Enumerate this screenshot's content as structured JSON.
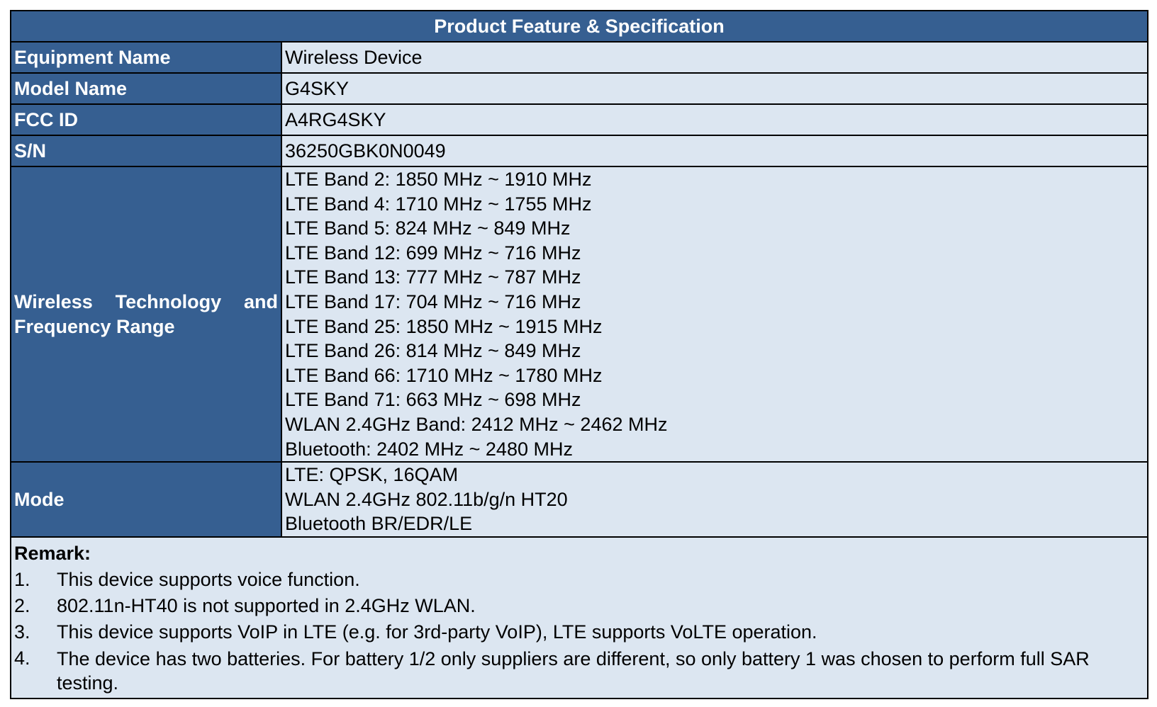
{
  "title": "Product Feature & Specification",
  "rows": [
    {
      "label": "Equipment Name",
      "value": "Wireless Device"
    },
    {
      "label": "Model Name",
      "value": "G4SKY"
    },
    {
      "label": "FCC ID",
      "value": "A4RG4SKY"
    },
    {
      "label": "S/N",
      "value": "36250GBK0N0049"
    }
  ],
  "frequency": {
    "label": "Wireless Technology and Frequency Range",
    "values": [
      "LTE Band 2: 1850 MHz ~ 1910 MHz",
      "LTE Band 4: 1710 MHz ~ 1755 MHz",
      "LTE Band 5: 824 MHz ~ 849 MHz",
      "LTE Band 12: 699 MHz ~ 716 MHz",
      "LTE Band 13: 777 MHz ~ 787 MHz",
      "LTE Band 17: 704 MHz ~ 716 MHz",
      "LTE Band 25: 1850 MHz ~ 1915 MHz",
      "LTE Band 26: 814 MHz ~ 849 MHz",
      "LTE Band 66: 1710 MHz ~ 1780 MHz",
      "LTE Band 71: 663 MHz ~ 698 MHz",
      "WLAN 2.4GHz Band: 2412 MHz ~ 2462 MHz",
      "Bluetooth: 2402 MHz ~ 2480 MHz"
    ]
  },
  "mode": {
    "label": "Mode",
    "values": [
      "LTE: QPSK, 16QAM",
      "WLAN 2.4GHz 802.11b/g/n HT20",
      "Bluetooth BR/EDR/LE"
    ]
  },
  "remark": {
    "title": "Remark:",
    "items": [
      {
        "num": "1.",
        "text": "This device supports voice function."
      },
      {
        "num": "2.",
        "text": "802.11n-HT40 is not supported in 2.4GHz WLAN."
      },
      {
        "num": "3.",
        "text": "This device supports VoIP in LTE (e.g. for 3rd-party VoIP), LTE supports VoLTE operation."
      },
      {
        "num": "4.",
        "text": "The device has two batteries. For battery 1/2 only suppliers are different, so only battery 1 was chosen to perform full SAR testing."
      }
    ]
  },
  "colors": {
    "header_bg": "#365f91",
    "cell_bg": "#dce6f1"
  }
}
